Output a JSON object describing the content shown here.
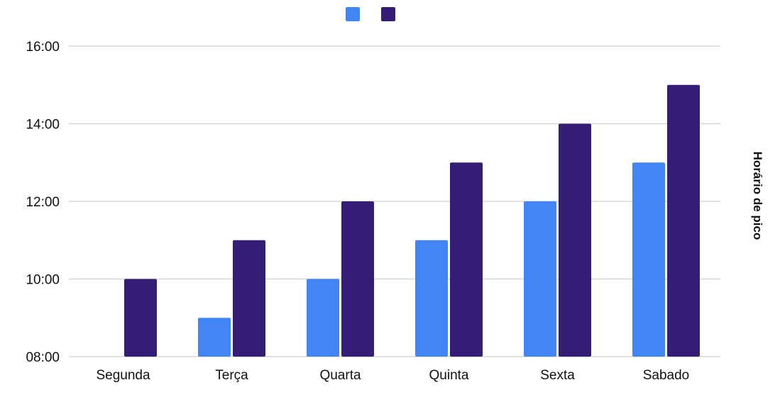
{
  "chart_data": {
    "type": "bar",
    "title": "",
    "xlabel": "",
    "ylabel": "Horário de pico",
    "y_axis_position": "right",
    "legend_position": "top",
    "grid": true,
    "categories": [
      "Segunda",
      "Terça",
      "Quarta",
      "Quinta",
      "Sexta",
      "Sabado"
    ],
    "y_ticks": [
      "08:00",
      "10:00",
      "12:00",
      "14:00",
      "16:00"
    ],
    "ylim": [
      8,
      16
    ],
    "series": [
      {
        "color": "#4285f4",
        "values": [
          8,
          9,
          10,
          11,
          12,
          13
        ]
      },
      {
        "color": "#351c75",
        "values": [
          10,
          11,
          12,
          13,
          14,
          15
        ]
      }
    ]
  }
}
